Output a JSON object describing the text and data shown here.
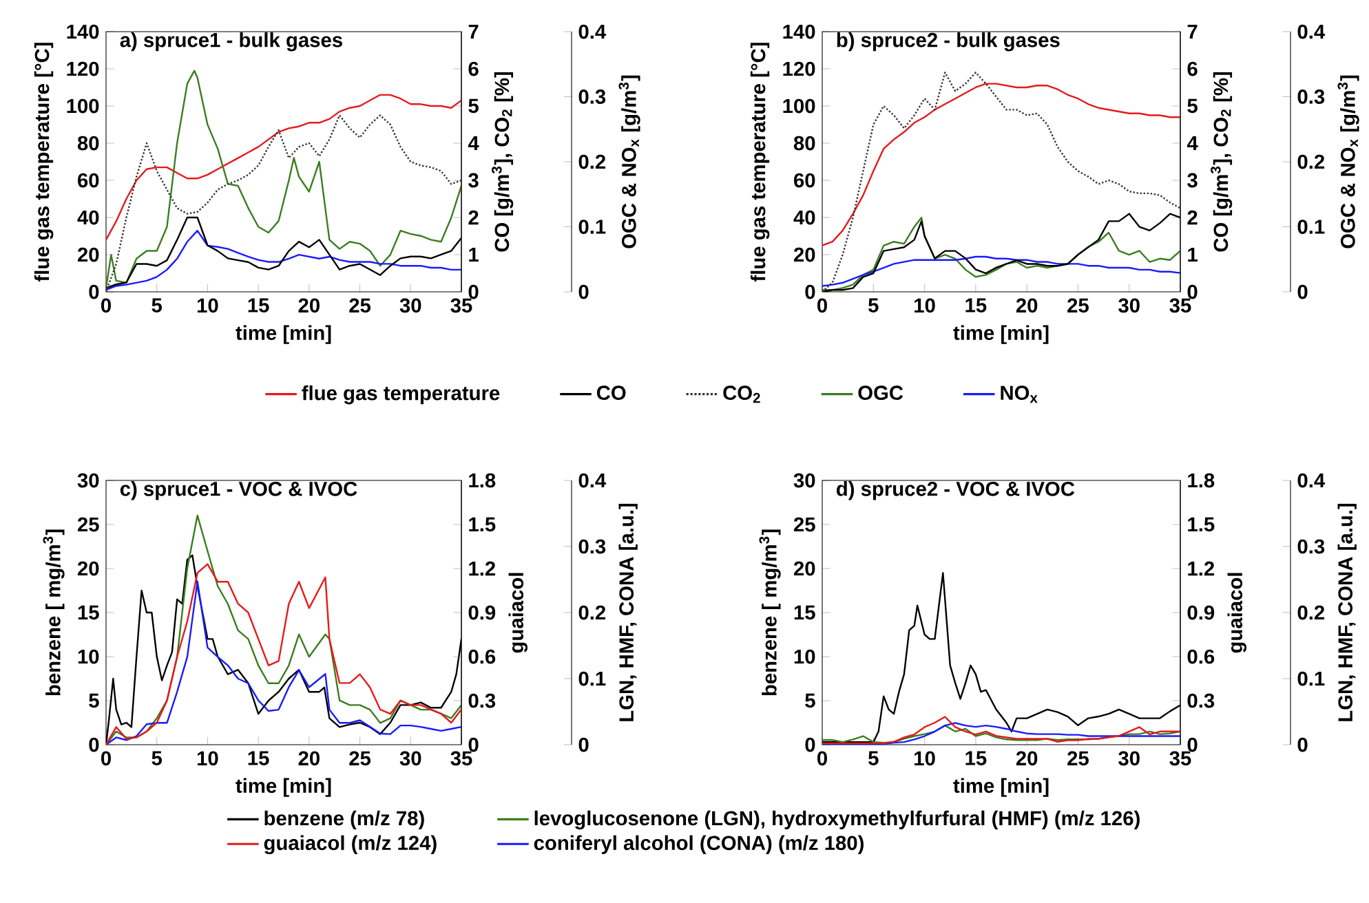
{
  "chart_data": [
    {
      "type": "line",
      "title": "a) spruce1 - bulk gases",
      "xlabel": "time [min]",
      "ylabel": "flue gas temperature [°C]",
      "y2label": "CO [g/m$^{3}$], CO$_{2}$ [%]",
      "y3label": "OGC & NO$_{x}$ [g/m$^{3}$]",
      "legend": "bottom",
      "xlim": [
        0,
        35
      ],
      "xticks": [
        0,
        5,
        10,
        15,
        20,
        25,
        30,
        35
      ],
      "ylim": [
        0,
        140
      ],
      "yticks": [
        0,
        20,
        40,
        60,
        80,
        100,
        120,
        140
      ],
      "y2lim": [
        0,
        7
      ],
      "y2ticks": [
        0,
        1,
        2,
        3,
        4,
        5,
        6,
        7
      ],
      "y3lim": [
        0,
        0.4
      ],
      "y3ticks": [
        0,
        0.1,
        0.2,
        0.3,
        0.4
      ],
      "x": [
        0,
        1,
        2,
        3,
        4,
        5,
        6,
        7,
        8,
        9,
        10,
        11,
        12,
        13,
        14,
        15,
        16,
        17,
        18,
        19,
        20,
        21,
        22,
        23,
        24,
        25,
        26,
        27,
        28,
        29,
        30,
        31,
        32,
        33,
        34,
        35
      ],
      "series": [
        {
          "name": "flue gas temperature",
          "color": "#e41a1c",
          "axis": "y",
          "values": [
            28,
            38,
            50,
            60,
            66,
            67,
            67,
            64,
            61,
            61,
            63,
            66,
            69,
            72,
            75,
            78,
            82,
            86,
            88,
            89,
            91,
            91,
            93,
            97,
            99,
            100,
            103,
            106,
            106,
            104,
            101,
            101,
            100,
            100,
            99,
            103
          ]
        },
        {
          "name": "CO",
          "color": "#000000",
          "axis": "y2",
          "values": [
            0.1,
            0.2,
            0.25,
            0.75,
            0.75,
            0.7,
            0.85,
            1.4,
            2,
            2,
            1.25,
            1.1,
            0.9,
            0.85,
            0.8,
            0.65,
            0.6,
            0.7,
            1.1,
            1.35,
            1.2,
            1.4,
            1,
            0.6,
            0.7,
            0.75,
            0.6,
            0.45,
            0.7,
            0.9,
            0.95,
            0.95,
            0.9,
            1,
            1.1,
            1.45
          ]
        },
        {
          "name": "CO$_{2}$",
          "color": "#333333",
          "axis": "y2",
          "line_style": "dotted",
          "values": [
            0,
            0.75,
            2,
            3.1,
            4,
            3.25,
            2.75,
            2.25,
            2.1,
            2.15,
            2.4,
            2.75,
            2.9,
            3,
            3.15,
            3.4,
            3.9,
            4.35,
            3.6,
            3.9,
            4,
            3.65,
            4.1,
            4.75,
            4.4,
            4.15,
            4.5,
            4.75,
            4.5,
            3.9,
            3.5,
            3.4,
            3.35,
            3.25,
            2.9,
            3
          ]
        },
        {
          "name": "OGC",
          "color": "#3a7d1e",
          "axis": "y3",
          "x": [
            0,
            0.5,
            1,
            2,
            3,
            4,
            5,
            6,
            7,
            8,
            8.7,
            9,
            10,
            11,
            12,
            13,
            14,
            15,
            16,
            17,
            18,
            18.5,
            19,
            20,
            21,
            22,
            23,
            24,
            25,
            26,
            27,
            28,
            29,
            30,
            31,
            32,
            33,
            34,
            35
          ],
          "values": [
            0.006,
            0.057,
            0.017,
            0.014,
            0.051,
            0.063,
            0.063,
            0.1,
            0.229,
            0.32,
            0.34,
            0.329,
            0.257,
            0.22,
            0.166,
            0.163,
            0.129,
            0.1,
            0.091,
            0.109,
            0.171,
            0.206,
            0.177,
            0.154,
            0.2,
            0.08,
            0.066,
            0.077,
            0.074,
            0.063,
            0.04,
            0.057,
            0.094,
            0.089,
            0.086,
            0.08,
            0.077,
            0.114,
            0.163
          ]
        },
        {
          "name": "NO$_{x}$",
          "color": "#1a1aff",
          "axis": "y3",
          "values": [
            0.003,
            0.009,
            0.011,
            0.014,
            0.017,
            0.023,
            0.034,
            0.051,
            0.077,
            0.094,
            0.071,
            0.069,
            0.066,
            0.06,
            0.054,
            0.049,
            0.046,
            0.046,
            0.051,
            0.057,
            0.054,
            0.051,
            0.054,
            0.049,
            0.046,
            0.046,
            0.046,
            0.043,
            0.043,
            0.04,
            0.04,
            0.04,
            0.037,
            0.037,
            0.034,
            0.034
          ]
        }
      ]
    },
    {
      "type": "line",
      "title": "b) spruce2 - bulk gases",
      "xlabel": "time [min]",
      "ylabel": "flue gas temperature [°C]",
      "y2label": "CO [g/m$^{3}$], CO$_{2}$ [%]",
      "y3label": "OGC & NO$_{x}$ [g/m$^{3}$]",
      "xlim": [
        0,
        35
      ],
      "xticks": [
        0,
        5,
        10,
        15,
        20,
        25,
        30,
        35
      ],
      "ylim": [
        0,
        140
      ],
      "yticks": [
        0,
        20,
        40,
        60,
        80,
        100,
        120,
        140
      ],
      "y2lim": [
        0,
        7
      ],
      "y2ticks": [
        0,
        1,
        2,
        3,
        4,
        5,
        6,
        7
      ],
      "y3lim": [
        0,
        0.4
      ],
      "y3ticks": [
        0,
        0.1,
        0.2,
        0.3,
        0.4
      ],
      "x": [
        0,
        1,
        2,
        3,
        4,
        5,
        6,
        7,
        8,
        9,
        10,
        11,
        12,
        13,
        14,
        15,
        16,
        17,
        18,
        19,
        20,
        21,
        22,
        23,
        24,
        25,
        26,
        27,
        28,
        29,
        30,
        31,
        32,
        33,
        34,
        35
      ],
      "series": [
        {
          "color": "#e41a1c",
          "axis": "y",
          "values": [
            25,
            27,
            33,
            42,
            52,
            65,
            77,
            82,
            86,
            91,
            94,
            98,
            101,
            104,
            107,
            110,
            112,
            112,
            111,
            110,
            110,
            111,
            111,
            109,
            106,
            104,
            101,
            99,
            98,
            97,
            96,
            96,
            95,
            95,
            94,
            94
          ]
        },
        {
          "color": "#000000",
          "axis": "y2",
          "x": [
            0,
            1,
            2,
            3,
            4,
            5,
            6,
            7,
            8,
            9,
            9.7,
            10,
            11,
            12,
            13,
            14,
            15,
            16,
            17,
            18,
            19,
            20,
            21,
            22,
            23,
            24,
            25,
            26,
            27,
            28,
            29,
            30,
            31,
            32,
            33,
            34,
            35
          ],
          "values": [
            0,
            0.05,
            0.05,
            0.1,
            0.4,
            0.5,
            1.1,
            1.15,
            1.2,
            1.4,
            1.9,
            1.5,
            0.9,
            1.1,
            1.1,
            0.9,
            0.6,
            0.5,
            0.65,
            0.75,
            0.85,
            0.75,
            0.75,
            0.7,
            0.7,
            0.75,
            1,
            1.2,
            1.4,
            1.9,
            1.9,
            2.1,
            1.75,
            1.65,
            1.85,
            2.1,
            2
          ]
        },
        {
          "color": "#333333",
          "axis": "y2",
          "line_style": "dotted",
          "values": [
            0,
            0.25,
            1,
            2,
            3.25,
            4.5,
            5,
            4.75,
            4.4,
            4.75,
            5.2,
            4.9,
            5.9,
            5.4,
            5.6,
            5.9,
            5.6,
            5.25,
            4.9,
            4.9,
            4.75,
            4.8,
            4.5,
            3.9,
            3.5,
            3.25,
            3.1,
            2.9,
            3,
            2.9,
            2.7,
            2.65,
            2.65,
            2.6,
            2.4,
            2.25
          ]
        },
        {
          "color": "#3a7d1e",
          "axis": "y3",
          "x": [
            0,
            1,
            2,
            3,
            4,
            5,
            6,
            7,
            8,
            9,
            9.7,
            10,
            11,
            12,
            13,
            14,
            15,
            16,
            17,
            18,
            19,
            20,
            21,
            22,
            23,
            24,
            25,
            26,
            27,
            28,
            29,
            30,
            31,
            32,
            33,
            34,
            35
          ],
          "values": [
            0.003,
            0.003,
            0.006,
            0.011,
            0.026,
            0.034,
            0.071,
            0.077,
            0.074,
            0.1,
            0.114,
            0.086,
            0.051,
            0.057,
            0.051,
            0.034,
            0.023,
            0.026,
            0.034,
            0.043,
            0.046,
            0.037,
            0.04,
            0.037,
            0.04,
            0.043,
            0.057,
            0.069,
            0.077,
            0.091,
            0.063,
            0.057,
            0.063,
            0.046,
            0.051,
            0.049,
            0.063
          ]
        },
        {
          "color": "#1a1aff",
          "axis": "y3",
          "values": [
            0.009,
            0.011,
            0.014,
            0.02,
            0.026,
            0.031,
            0.037,
            0.043,
            0.046,
            0.049,
            0.049,
            0.049,
            0.049,
            0.049,
            0.051,
            0.054,
            0.054,
            0.051,
            0.051,
            0.049,
            0.049,
            0.046,
            0.046,
            0.043,
            0.043,
            0.043,
            0.04,
            0.04,
            0.037,
            0.037,
            0.037,
            0.034,
            0.034,
            0.031,
            0.031,
            0.029
          ]
        }
      ]
    },
    {
      "type": "line",
      "title": "c) spruce1 -  VOC & IVOC",
      "xlabel": "time [min]",
      "ylabel": "benzene [ mg/m$^{3}$]",
      "y2label": "guaiacol",
      "y3label": "LGN, HMF, CONA [a.u.]",
      "legend": "bottom",
      "xlim": [
        0,
        35
      ],
      "xticks": [
        0,
        5,
        10,
        15,
        20,
        25,
        30,
        35
      ],
      "ylim": [
        0,
        30
      ],
      "yticks": [
        0,
        5,
        10,
        15,
        20,
        25,
        30
      ],
      "y2lim": [
        0,
        1.8
      ],
      "y2ticks": [
        0,
        0.3,
        0.6,
        0.9,
        1.2,
        1.5,
        1.8
      ],
      "y3lim": [
        0,
        0.4
      ],
      "y3ticks": [
        0,
        0.1,
        0.2,
        0.3,
        0.4
      ],
      "x": [
        0,
        1,
        2,
        3,
        4,
        5,
        6,
        7,
        8,
        9,
        10,
        11,
        12,
        13,
        14,
        15,
        16,
        17,
        18,
        19,
        20,
        21.6,
        22,
        23,
        24,
        25,
        26,
        27,
        28,
        29,
        30,
        31,
        32,
        33,
        34,
        35
      ],
      "series": [
        {
          "name": "benzene (m/z 78)",
          "color": "#000000",
          "axis": "y",
          "x": [
            0,
            0.3,
            0.7,
            1,
            1.5,
            2,
            2.5,
            3,
            3.5,
            4,
            4.5,
            5,
            5.5,
            6,
            6.5,
            7,
            7.5,
            8,
            8.5,
            9,
            9.5,
            10,
            10.5,
            11,
            12,
            13,
            14,
            15,
            16,
            17,
            18,
            19,
            20,
            21,
            21.5,
            22,
            23,
            24,
            25,
            26,
            27,
            28,
            29,
            30,
            31,
            32,
            33,
            34,
            34.5,
            35
          ],
          "values": [
            0,
            3,
            7.5,
            4,
            2.3,
            2.5,
            2,
            10,
            17.5,
            15,
            15,
            10,
            7.3,
            9,
            10.5,
            16.5,
            16,
            21,
            21.5,
            18,
            15,
            12,
            12,
            10,
            8,
            8.5,
            7,
            3.5,
            5,
            6,
            7.5,
            8.5,
            6,
            6,
            6.5,
            3,
            2,
            2.3,
            2.5,
            2,
            1.2,
            2.5,
            4.5,
            4.5,
            4.8,
            4.2,
            4.2,
            6,
            8,
            12
          ]
        },
        {
          "name": "levoglucosenone (LGN),  hydroxymethylfurfural (HMF) (m/z 126)",
          "color": "#3a7d1e",
          "axis": "y3",
          "values": [
            0,
            0.02,
            0.011,
            0.011,
            0.02,
            0.04,
            0.067,
            0.133,
            0.267,
            0.347,
            0.293,
            0.24,
            0.213,
            0.173,
            0.16,
            0.12,
            0.093,
            0.093,
            0.12,
            0.167,
            0.133,
            0.167,
            0.16,
            0.067,
            0.06,
            0.06,
            0.053,
            0.033,
            0.04,
            0.067,
            0.06,
            0.053,
            0.053,
            0.047,
            0.04,
            0.06
          ]
        },
        {
          "name": "guaiacol (m/z 124)",
          "color": "#e41a1c",
          "axis": "y2",
          "values": [
            0,
            0.12,
            0.04,
            0.05,
            0.09,
            0.15,
            0.3,
            0.6,
            0.84,
            1.17,
            1.23,
            1.11,
            1.11,
            0.96,
            0.9,
            0.72,
            0.54,
            0.57,
            0.96,
            1.11,
            0.93,
            1.14,
            0.72,
            0.42,
            0.42,
            0.48,
            0.39,
            0.24,
            0.21,
            0.3,
            0.27,
            0.27,
            0.24,
            0.21,
            0.15,
            0.24
          ]
        },
        {
          "name": "coniferyl alcohol (CONA) (m/z 180)",
          "color": "#1a1aff",
          "axis": "y3",
          "values": [
            0,
            0.011,
            0.007,
            0.013,
            0.031,
            0.033,
            0.033,
            0.08,
            0.133,
            0.247,
            0.147,
            0.133,
            0.12,
            0.1,
            0.093,
            0.067,
            0.051,
            0.053,
            0.087,
            0.113,
            0.087,
            0.107,
            0.053,
            0.033,
            0.033,
            0.037,
            0.027,
            0.017,
            0.016,
            0.029,
            0.029,
            0.027,
            0.024,
            0.021,
            0.024,
            0.027
          ]
        }
      ]
    },
    {
      "type": "line",
      "title": "d) spruce2 - VOC & IVOC",
      "xlabel": "time [min]",
      "ylabel": "benzene [ mg/m$^{3}$]",
      "y2label": "guaiacol",
      "y3label": "LGN, HMF, CONA [a.u.]",
      "xlim": [
        0,
        35
      ],
      "xticks": [
        0,
        5,
        10,
        15,
        20,
        25,
        30,
        35
      ],
      "ylim": [
        0,
        30
      ],
      "yticks": [
        0,
        5,
        10,
        15,
        20,
        25,
        30
      ],
      "y2lim": [
        0,
        1.8
      ],
      "y2ticks": [
        0,
        0.3,
        0.6,
        0.9,
        1.2,
        1.5,
        1.8
      ],
      "y3lim": [
        0,
        0.4
      ],
      "y3ticks": [
        0,
        0.1,
        0.2,
        0.3,
        0.4
      ],
      "x": [
        0,
        1,
        2,
        3,
        4,
        5,
        6,
        7,
        8,
        9,
        10,
        11,
        12,
        13,
        14,
        15,
        16,
        17,
        18,
        19,
        20,
        21,
        22,
        23,
        24,
        25,
        26,
        27,
        28,
        29,
        30,
        31,
        32,
        33,
        34,
        35
      ],
      "series": [
        {
          "color": "#000000",
          "axis": "y",
          "x": [
            0,
            2,
            4,
            5,
            5.5,
            6,
            6.5,
            7,
            7.5,
            8,
            8.5,
            9,
            9.3,
            10,
            10.5,
            11,
            11.8,
            12.5,
            13,
            13.5,
            14,
            14.5,
            15,
            15.5,
            16,
            17,
            18,
            18.5,
            19,
            20,
            21,
            22,
            23,
            24,
            25,
            26,
            27,
            28,
            29,
            30,
            31,
            32,
            33,
            34,
            35
          ],
          "values": [
            0.3,
            0.3,
            0.3,
            0.3,
            1.5,
            5.5,
            4,
            3.5,
            6,
            8,
            13,
            13.5,
            15.8,
            12.5,
            12,
            12,
            19.5,
            9,
            7,
            5.2,
            7,
            9,
            8,
            6,
            6.2,
            4,
            2.5,
            1.5,
            3,
            3,
            3.5,
            4,
            3.7,
            3.2,
            2.2,
            3,
            3.2,
            3.5,
            4,
            3.5,
            3,
            3,
            3,
            3.8,
            4.5
          ]
        },
        {
          "color": "#3a7d1e",
          "axis": "y3",
          "values": [
            0.007,
            0.007,
            0.004,
            0.008,
            0.013,
            0.004,
            0.003,
            0.004,
            0.009,
            0.013,
            0.016,
            0.02,
            0.029,
            0.02,
            0.024,
            0.013,
            0.017,
            0.011,
            0.008,
            0.007,
            0.007,
            0.007,
            0.009,
            0.007,
            0.008,
            0.008,
            0.008,
            0.009,
            0.012,
            0.013,
            0.016,
            0.016,
            0.02,
            0.016,
            0.017,
            0.02
          ]
        },
        {
          "color": "#e41a1c",
          "axis": "y2",
          "values": [
            0.01,
            0.01,
            0.01,
            0.01,
            0.01,
            0.01,
            0.01,
            0.02,
            0.05,
            0.07,
            0.12,
            0.15,
            0.19,
            0.12,
            0.09,
            0.07,
            0.09,
            0.06,
            0.05,
            0.04,
            0.04,
            0.04,
            0.04,
            0.02,
            0.03,
            0.03,
            0.04,
            0.04,
            0.05,
            0.06,
            0.09,
            0.12,
            0.07,
            0.09,
            0.09,
            0.09
          ]
        },
        {
          "color": "#1a1aff",
          "axis": "y3",
          "values": [
            0.001,
            0.001,
            0.001,
            0.001,
            0.001,
            0.001,
            0.001,
            0.003,
            0.004,
            0.008,
            0.013,
            0.02,
            0.029,
            0.033,
            0.029,
            0.027,
            0.029,
            0.027,
            0.024,
            0.02,
            0.017,
            0.016,
            0.016,
            0.016,
            0.015,
            0.015,
            0.013,
            0.013,
            0.013,
            0.013,
            0.013,
            0.013,
            0.013,
            0.013,
            0.013,
            0.013
          ]
        }
      ]
    }
  ]
}
